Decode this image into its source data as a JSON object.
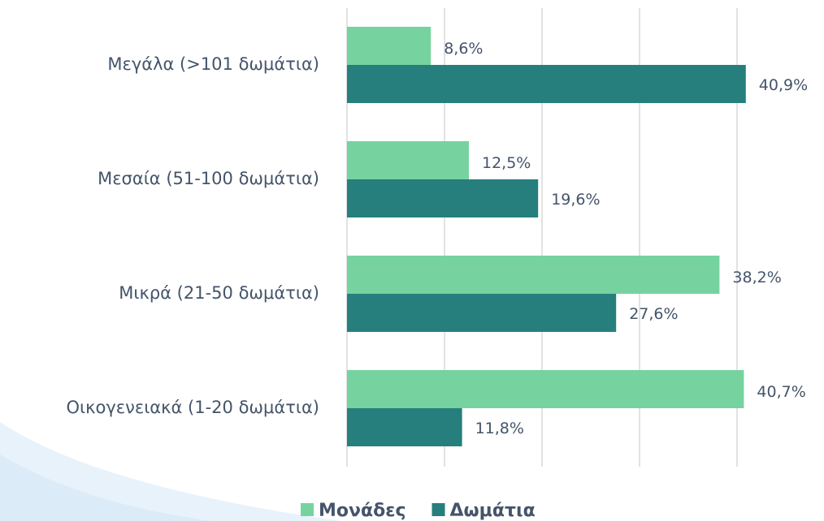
{
  "chart_data": {
    "type": "bar",
    "orientation": "horizontal",
    "categories": [
      "Μεγάλα (>101 δωμάτια)",
      "Μεσαία (51-100 δωμάτια)",
      "Μικρά (21-50 δωμάτια)",
      "Οικογενειακά (1-20 δωμάτια)"
    ],
    "series": [
      {
        "name": "Μονάδες",
        "color": "#76d3a0",
        "values": [
          8.6,
          12.5,
          38.2,
          40.7
        ],
        "value_labels": [
          "8,6%",
          "12,5%",
          "38,2%",
          "40,7%"
        ]
      },
      {
        "name": "Δωμάτια",
        "color": "#267f7c",
        "values": [
          40.9,
          19.6,
          27.6,
          11.8
        ],
        "value_labels": [
          "40,9%",
          "19,6%",
          "27,6%",
          "11,8%"
        ]
      }
    ],
    "xlim": [
      0,
      45
    ],
    "xticks": [
      0,
      10,
      20,
      30,
      40
    ],
    "grid": true,
    "legend": "bottom"
  }
}
